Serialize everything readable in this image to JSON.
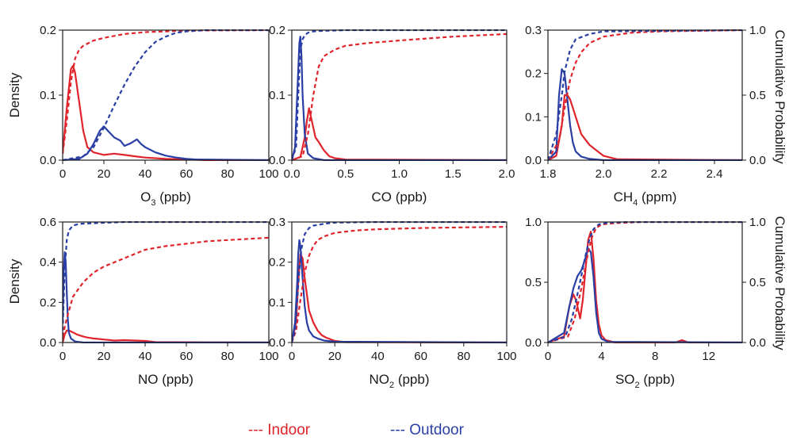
{
  "colors": {
    "indoor": "#e0242b",
    "outdoor": "#2a3fa6",
    "axis": "#1a1a1a"
  },
  "legend": {
    "indoor": "--- Indoor",
    "outdoor": "--- Outdoor"
  },
  "labels": {
    "density_top": "Density",
    "density_bottom": "Density",
    "cumprob_top": "Cumulative Probability",
    "cumprob_bottom": "Cumulative Probability"
  },
  "chart_data": [
    {
      "type": "line",
      "xlabel_main": "O",
      "xlabel_sub": "3",
      "xlabel_unit": " (ppb)",
      "xlim": [
        0,
        100
      ],
      "xticks": [
        "0",
        "20",
        "40",
        "60",
        "80",
        "100"
      ],
      "xtick_values": [
        0,
        20,
        40,
        60,
        80,
        100
      ],
      "ylim": [
        0,
        0.2
      ],
      "yticks": [
        "0.0",
        "0.1",
        "0.2"
      ],
      "ytick_values": [
        0,
        0.1,
        0.2
      ],
      "y2lim": [
        0,
        1
      ],
      "y2ticks": [],
      "y2tick_values": [],
      "series": [
        {
          "name": "Indoor",
          "kind": "density",
          "x": [
            0,
            2,
            4,
            5,
            6,
            8,
            10,
            12,
            15,
            20,
            25,
            30,
            35,
            40,
            50,
            60,
            70,
            100
          ],
          "y": [
            0.01,
            0.08,
            0.14,
            0.145,
            0.135,
            0.09,
            0.045,
            0.02,
            0.012,
            0.008,
            0.01,
            0.008,
            0.006,
            0.004,
            0.002,
            0.001,
            0,
            0
          ]
        },
        {
          "name": "Outdoor",
          "kind": "density",
          "x": [
            0,
            8,
            12,
            15,
            18,
            20,
            22,
            25,
            28,
            30,
            33,
            36,
            38,
            40,
            45,
            50,
            55,
            60,
            65,
            100
          ],
          "y": [
            0,
            0.002,
            0.01,
            0.025,
            0.045,
            0.052,
            0.045,
            0.035,
            0.03,
            0.022,
            0.026,
            0.032,
            0.025,
            0.02,
            0.012,
            0.007,
            0.004,
            0.002,
            0.001,
            0
          ]
        },
        {
          "name": "Indoor",
          "kind": "cumulative",
          "x": [
            0,
            2,
            4,
            6,
            8,
            10,
            15,
            20,
            30,
            40,
            50,
            60,
            100
          ],
          "y": [
            0.05,
            0.3,
            0.6,
            0.78,
            0.85,
            0.88,
            0.92,
            0.94,
            0.97,
            0.985,
            0.99,
            0.997,
            1.0
          ]
        },
        {
          "name": "Outdoor",
          "kind": "cumulative",
          "x": [
            0,
            10,
            15,
            20,
            25,
            30,
            35,
            40,
            45,
            50,
            55,
            60,
            65,
            70,
            100
          ],
          "y": [
            0,
            0.03,
            0.1,
            0.25,
            0.42,
            0.58,
            0.72,
            0.83,
            0.91,
            0.95,
            0.98,
            0.99,
            0.995,
            1.0,
            1.0
          ]
        }
      ]
    },
    {
      "type": "line",
      "xlabel_main": "CO",
      "xlabel_sub": "",
      "xlabel_unit": " (ppb)",
      "xlim": [
        0,
        2.0
      ],
      "xticks": [
        "0.0",
        "0.5",
        "1.0",
        "1.5",
        "2.0"
      ],
      "xtick_values": [
        0,
        0.5,
        1.0,
        1.5,
        2.0
      ],
      "ylim": [
        0,
        0.2
      ],
      "yticks": [
        "0.0",
        "0.1",
        "0.2"
      ],
      "ytick_values": [
        0,
        0.1,
        0.2
      ],
      "y2lim": [
        0,
        1
      ],
      "y2ticks": [],
      "y2tick_values": [],
      "series": [
        {
          "name": "Indoor",
          "kind": "density",
          "x": [
            0,
            0.08,
            0.1,
            0.12,
            0.14,
            0.16,
            0.18,
            0.2,
            0.22,
            0.25,
            0.28,
            0.3,
            0.35,
            0.4,
            0.5,
            2.0
          ],
          "y": [
            0,
            0.005,
            0.02,
            0.035,
            0.06,
            0.08,
            0.065,
            0.05,
            0.035,
            0.028,
            0.02,
            0.015,
            0.006,
            0.003,
            0.001,
            0
          ]
        },
        {
          "name": "Outdoor",
          "kind": "density",
          "x": [
            0,
            0.03,
            0.05,
            0.07,
            0.08,
            0.09,
            0.1,
            0.12,
            0.15,
            0.2,
            0.3,
            2.0
          ],
          "y": [
            0,
            0.02,
            0.1,
            0.18,
            0.19,
            0.16,
            0.1,
            0.04,
            0.01,
            0.003,
            0,
            0
          ]
        },
        {
          "name": "Indoor",
          "kind": "cumulative",
          "x": [
            0,
            0.1,
            0.15,
            0.2,
            0.25,
            0.3,
            0.4,
            0.5,
            0.7,
            1.0,
            1.5,
            2.0
          ],
          "y": [
            0,
            0.03,
            0.2,
            0.5,
            0.72,
            0.8,
            0.85,
            0.88,
            0.9,
            0.92,
            0.95,
            0.97
          ]
        },
        {
          "name": "Outdoor",
          "kind": "cumulative",
          "x": [
            0,
            0.04,
            0.06,
            0.08,
            0.1,
            0.12,
            0.15,
            0.2,
            0.3,
            0.5,
            1.0,
            2.0
          ],
          "y": [
            0,
            0.1,
            0.5,
            0.85,
            0.93,
            0.96,
            0.98,
            0.99,
            0.995,
            1.0,
            1.0,
            1.0
          ]
        }
      ]
    },
    {
      "type": "line",
      "xlabel_main": "CH",
      "xlabel_sub": "4",
      "xlabel_unit": " (ppm)",
      "xlim": [
        1.8,
        2.5
      ],
      "xticks": [
        "1.8",
        "2.0",
        "2.2",
        "2.4"
      ],
      "xtick_values": [
        1.8,
        2.0,
        2.2,
        2.4
      ],
      "ylim": [
        0,
        0.3
      ],
      "yticks": [
        "0.0",
        "0.1",
        "0.2",
        "0.3"
      ],
      "ytick_values": [
        0,
        0.1,
        0.2,
        0.3
      ],
      "y2lim": [
        0,
        1.0
      ],
      "y2ticks": [
        "0.0",
        "0.5",
        "1.0"
      ],
      "y2tick_values": [
        0,
        0.5,
        1.0
      ],
      "series": [
        {
          "name": "Indoor",
          "kind": "density",
          "x": [
            1.8,
            1.83,
            1.85,
            1.86,
            1.87,
            1.88,
            1.89,
            1.9,
            1.92,
            1.95,
            1.98,
            2.0,
            2.05,
            2.5
          ],
          "y": [
            0,
            0.01,
            0.08,
            0.15,
            0.15,
            0.14,
            0.12,
            0.1,
            0.06,
            0.035,
            0.02,
            0.01,
            0.002,
            0
          ]
        },
        {
          "name": "Outdoor",
          "kind": "density",
          "x": [
            1.8,
            1.83,
            1.84,
            1.85,
            1.86,
            1.87,
            1.88,
            1.89,
            1.9,
            1.92,
            1.95,
            2.0,
            2.5
          ],
          "y": [
            0,
            0.02,
            0.15,
            0.21,
            0.2,
            0.14,
            0.08,
            0.04,
            0.02,
            0.008,
            0.003,
            0,
            0
          ]
        },
        {
          "name": "Indoor",
          "kind": "cumulative",
          "x": [
            1.8,
            1.84,
            1.86,
            1.88,
            1.9,
            1.92,
            1.95,
            2.0,
            2.1,
            2.2,
            2.5
          ],
          "y": [
            0,
            0.15,
            0.4,
            0.62,
            0.75,
            0.83,
            0.9,
            0.95,
            0.98,
            0.99,
            1.0
          ]
        },
        {
          "name": "Outdoor",
          "kind": "cumulative",
          "x": [
            1.8,
            1.83,
            1.85,
            1.86,
            1.88,
            1.9,
            1.95,
            2.0,
            2.5
          ],
          "y": [
            0,
            0.2,
            0.5,
            0.68,
            0.85,
            0.93,
            0.97,
            0.99,
            1.0
          ]
        }
      ]
    },
    {
      "type": "line",
      "xlabel_main": "NO",
      "xlabel_sub": "",
      "xlabel_unit": " (ppb)",
      "xlim": [
        0,
        100
      ],
      "xticks": [
        "0",
        "20",
        "40",
        "60",
        "80",
        "100"
      ],
      "xtick_values": [
        0,
        20,
        40,
        60,
        80,
        100
      ],
      "ylim": [
        0,
        0.6
      ],
      "yticks": [
        "0.0",
        "0.2",
        "0.4",
        "0.6"
      ],
      "ytick_values": [
        0,
        0.2,
        0.4,
        0.6
      ],
      "y2lim": [
        0,
        1
      ],
      "y2ticks": [],
      "y2tick_values": [],
      "series": [
        {
          "name": "Indoor",
          "kind": "density",
          "x": [
            0,
            1,
            2,
            3,
            5,
            7,
            10,
            12,
            15,
            20,
            25,
            30,
            35,
            40,
            45,
            100
          ],
          "y": [
            0,
            0.04,
            0.06,
            0.06,
            0.05,
            0.04,
            0.03,
            0.025,
            0.02,
            0.015,
            0.01,
            0.012,
            0.01,
            0.008,
            0.002,
            0
          ]
        },
        {
          "name": "Outdoor",
          "kind": "density",
          "x": [
            0,
            0.5,
            1,
            1.5,
            2,
            2.5,
            3,
            4,
            6,
            10,
            100
          ],
          "y": [
            0.1,
            0.35,
            0.45,
            0.4,
            0.25,
            0.12,
            0.05,
            0.02,
            0.005,
            0,
            0
          ]
        },
        {
          "name": "Indoor",
          "kind": "cumulative",
          "x": [
            0,
            2,
            5,
            10,
            15,
            20,
            30,
            40,
            50,
            60,
            70,
            80,
            90,
            100
          ],
          "y": [
            0.05,
            0.2,
            0.38,
            0.5,
            0.58,
            0.63,
            0.7,
            0.77,
            0.8,
            0.82,
            0.84,
            0.85,
            0.86,
            0.87
          ]
        },
        {
          "name": "Outdoor",
          "kind": "cumulative",
          "x": [
            0,
            1,
            2,
            3,
            5,
            8,
            15,
            30,
            100
          ],
          "y": [
            0.1,
            0.6,
            0.85,
            0.93,
            0.97,
            0.985,
            0.99,
            1.0,
            1.0
          ]
        }
      ]
    },
    {
      "type": "line",
      "xlabel_main": "NO",
      "xlabel_sub": "2",
      "xlabel_unit": " (ppb)",
      "xlim": [
        0,
        100
      ],
      "xticks": [
        "0",
        "20",
        "40",
        "60",
        "80",
        "100"
      ],
      "xtick_values": [
        0,
        20,
        40,
        60,
        80,
        100
      ],
      "ylim": [
        0,
        0.3
      ],
      "yticks": [
        "0.0",
        "0.1",
        "0.2",
        "0.3"
      ],
      "ytick_values": [
        0,
        0.1,
        0.2,
        0.3
      ],
      "y2lim": [
        0,
        1
      ],
      "y2ticks": [],
      "y2tick_values": [],
      "series": [
        {
          "name": "Indoor",
          "kind": "density",
          "x": [
            0,
            2,
            3,
            4,
            5,
            6,
            7,
            8,
            10,
            12,
            14,
            16,
            18,
            20,
            25,
            100
          ],
          "y": [
            0,
            0.05,
            0.15,
            0.22,
            0.21,
            0.16,
            0.12,
            0.08,
            0.05,
            0.03,
            0.018,
            0.012,
            0.008,
            0.004,
            0.001,
            0
          ]
        },
        {
          "name": "Outdoor",
          "kind": "density",
          "x": [
            0,
            1.5,
            2.5,
            3,
            3.5,
            4,
            5,
            6,
            7,
            8,
            10,
            12,
            15,
            20,
            100
          ],
          "y": [
            0,
            0.05,
            0.15,
            0.22,
            0.255,
            0.24,
            0.16,
            0.09,
            0.05,
            0.03,
            0.015,
            0.01,
            0.005,
            0.002,
            0
          ]
        },
        {
          "name": "Indoor",
          "kind": "cumulative",
          "x": [
            0,
            2,
            4,
            6,
            8,
            10,
            12,
            15,
            20,
            30,
            40,
            60,
            80,
            100
          ],
          "y": [
            0,
            0.1,
            0.35,
            0.58,
            0.72,
            0.8,
            0.85,
            0.88,
            0.91,
            0.93,
            0.94,
            0.95,
            0.955,
            0.96
          ]
        },
        {
          "name": "Outdoor",
          "kind": "cumulative",
          "x": [
            0,
            1.5,
            2.5,
            3.5,
            4.5,
            6,
            8,
            10,
            15,
            20,
            40,
            100
          ],
          "y": [
            0,
            0.1,
            0.35,
            0.6,
            0.78,
            0.9,
            0.95,
            0.97,
            0.985,
            0.995,
            1.0,
            1.0
          ]
        }
      ]
    },
    {
      "type": "line",
      "xlabel_main": "SO",
      "xlabel_sub": "2",
      "xlabel_unit": " (ppb)",
      "xlim": [
        0,
        14.5
      ],
      "xticks": [
        "0",
        "4",
        "8",
        "12"
      ],
      "xtick_values": [
        0,
        4,
        8,
        12
      ],
      "ylim": [
        0,
        1.0
      ],
      "yticks": [
        "0.0",
        "0.5",
        "1.0"
      ],
      "ytick_values": [
        0,
        0.5,
        1.0
      ],
      "y2lim": [
        0,
        1.0
      ],
      "y2ticks": [
        "0.0",
        "0.5",
        "1.0"
      ],
      "y2tick_values": [
        0,
        0.5,
        1.0
      ],
      "series": [
        {
          "name": "Indoor",
          "kind": "density",
          "x": [
            0,
            1.2,
            1.6,
            1.9,
            2.1,
            2.4,
            2.6,
            2.8,
            3.0,
            3.2,
            3.4,
            3.6,
            3.8,
            4.0,
            4.3,
            5,
            9.5,
            10,
            10.5,
            14.5
          ],
          "y": [
            0,
            0.05,
            0.3,
            0.4,
            0.35,
            0.2,
            0.35,
            0.6,
            0.85,
            0.92,
            0.7,
            0.35,
            0.15,
            0.06,
            0.02,
            0,
            0,
            0.02,
            0,
            0
          ]
        },
        {
          "name": "Outdoor",
          "kind": "density",
          "x": [
            0,
            1.2,
            1.6,
            1.9,
            2.2,
            2.5,
            2.8,
            3.0,
            3.2,
            3.4,
            3.6,
            3.8,
            4.0,
            4.5,
            14.5
          ],
          "y": [
            0,
            0.08,
            0.3,
            0.45,
            0.55,
            0.6,
            0.7,
            0.78,
            0.75,
            0.55,
            0.25,
            0.08,
            0.03,
            0.005,
            0
          ]
        },
        {
          "name": "Indoor",
          "kind": "cumulative",
          "x": [
            0,
            1.5,
            2,
            2.5,
            3,
            3.3,
            3.6,
            4,
            5,
            7,
            14.5
          ],
          "y": [
            0,
            0.05,
            0.2,
            0.45,
            0.75,
            0.88,
            0.95,
            0.98,
            0.99,
            1.0,
            1.0
          ]
        },
        {
          "name": "Outdoor",
          "kind": "cumulative",
          "x": [
            0,
            1.3,
            1.8,
            2.3,
            2.8,
            3.1,
            3.4,
            3.8,
            4.5,
            6,
            14.5
          ],
          "y": [
            0,
            0.05,
            0.2,
            0.45,
            0.72,
            0.86,
            0.94,
            0.98,
            0.995,
            1.0,
            1.0
          ]
        }
      ]
    }
  ]
}
